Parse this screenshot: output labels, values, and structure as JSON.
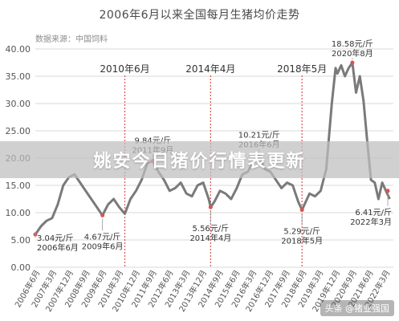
{
  "title": "2006年6月以来全国每月生猪均价走势",
  "source": "数据来源：中国饲料",
  "banner_text": "姚安今日猪价行情表更新",
  "watermark": "头条 @猪业强国",
  "colors": {
    "line": "#7a7a7a",
    "grid": "#d9d9d9",
    "marker_line": "#d9534f",
    "axis_text": "#555555"
  },
  "chart_data": {
    "type": "line",
    "title": "2006年6月以来全国每月生猪均价走势",
    "ylim": [
      0,
      40
    ],
    "y_ticks": [
      "0.00",
      "5.00",
      "10.00",
      "15.00",
      "20.00",
      "25.00",
      "30.00",
      "35.00",
      "40.00"
    ],
    "x_tick_labels": [
      "2006年6月",
      "2007年3月",
      "2007年12月",
      "2008年9月",
      "2009年6月",
      "2010年3月",
      "2010年12月",
      "2011年9月",
      "2012年6月",
      "2013年3月",
      "2013年12月",
      "2014年9月",
      "2015年6月",
      "2016年3月",
      "2016年12月",
      "2017年9月",
      "2018年6月",
      "2019年3月",
      "2019年12月",
      "2020年9月",
      "2021年6月",
      "2022年3月"
    ],
    "series": [
      {
        "values": [
          {
            "x": "2006-06",
            "y": 6.0
          },
          {
            "x": "2006-09",
            "y": 7.5
          },
          {
            "x": "2006-12",
            "y": 8.5
          },
          {
            "x": "2007-03",
            "y": 9.0
          },
          {
            "x": "2007-06",
            "y": 11.5
          },
          {
            "x": "2007-09",
            "y": 15.0
          },
          {
            "x": "2007-12",
            "y": 16.5
          },
          {
            "x": "2008-03",
            "y": 17.0
          },
          {
            "x": "2008-06",
            "y": 15.5
          },
          {
            "x": "2008-09",
            "y": 14.0
          },
          {
            "x": "2008-12",
            "y": 12.5
          },
          {
            "x": "2009-03",
            "y": 11.0
          },
          {
            "x": "2009-06",
            "y": 9.5
          },
          {
            "x": "2009-09",
            "y": 11.5
          },
          {
            "x": "2009-12",
            "y": 12.5
          },
          {
            "x": "2010-03",
            "y": 11.0
          },
          {
            "x": "2010-06",
            "y": 9.8
          },
          {
            "x": "2010-09",
            "y": 12.5
          },
          {
            "x": "2010-12",
            "y": 14.0
          },
          {
            "x": "2011-03",
            "y": 16.0
          },
          {
            "x": "2011-06",
            "y": 19.0
          },
          {
            "x": "2011-09",
            "y": 19.5
          },
          {
            "x": "2011-12",
            "y": 17.5
          },
          {
            "x": "2012-03",
            "y": 16.0
          },
          {
            "x": "2012-06",
            "y": 14.0
          },
          {
            "x": "2012-09",
            "y": 14.5
          },
          {
            "x": "2012-12",
            "y": 15.5
          },
          {
            "x": "2013-03",
            "y": 13.5
          },
          {
            "x": "2013-06",
            "y": 13.0
          },
          {
            "x": "2013-09",
            "y": 15.0
          },
          {
            "x": "2013-12",
            "y": 15.5
          },
          {
            "x": "2014-03",
            "y": 12.5
          },
          {
            "x": "2014-04",
            "y": 11.0
          },
          {
            "x": "2014-06",
            "y": 12.0
          },
          {
            "x": "2014-09",
            "y": 14.0
          },
          {
            "x": "2014-12",
            "y": 13.5
          },
          {
            "x": "2015-03",
            "y": 12.5
          },
          {
            "x": "2015-06",
            "y": 14.5
          },
          {
            "x": "2015-09",
            "y": 17.0
          },
          {
            "x": "2015-12",
            "y": 17.5
          },
          {
            "x": "2016-03",
            "y": 19.5
          },
          {
            "x": "2016-06",
            "y": 20.5
          },
          {
            "x": "2016-09",
            "y": 18.0
          },
          {
            "x": "2016-12",
            "y": 17.5
          },
          {
            "x": "2017-03",
            "y": 16.0
          },
          {
            "x": "2017-06",
            "y": 14.5
          },
          {
            "x": "2017-09",
            "y": 15.5
          },
          {
            "x": "2017-12",
            "y": 15.0
          },
          {
            "x": "2018-03",
            "y": 12.0
          },
          {
            "x": "2018-05",
            "y": 10.5
          },
          {
            "x": "2018-09",
            "y": 13.5
          },
          {
            "x": "2018-12",
            "y": 13.0
          },
          {
            "x": "2019-03",
            "y": 14.0
          },
          {
            "x": "2019-06",
            "y": 18.0
          },
          {
            "x": "2019-09",
            "y": 30.0
          },
          {
            "x": "2019-11",
            "y": 36.5
          },
          {
            "x": "2019-12",
            "y": 35.5
          },
          {
            "x": "2020-02",
            "y": 37.0
          },
          {
            "x": "2020-04",
            "y": 35.0
          },
          {
            "x": "2020-06",
            "y": 36.5
          },
          {
            "x": "2020-08",
            "y": 37.5
          },
          {
            "x": "2020-10",
            "y": 32.0
          },
          {
            "x": "2020-12",
            "y": 35.0
          },
          {
            "x": "2021-02",
            "y": 30.5
          },
          {
            "x": "2021-04",
            "y": 23.0
          },
          {
            "x": "2021-06",
            "y": 16.0
          },
          {
            "x": "2021-08",
            "y": 15.5
          },
          {
            "x": "2021-10",
            "y": 12.5
          },
          {
            "x": "2021-12",
            "y": 15.5
          },
          {
            "x": "2022-02",
            "y": 14.0
          },
          {
            "x": "2022-04",
            "y": 12.5
          }
        ]
      }
    ],
    "event_lines": [
      {
        "x": "2010-06",
        "label": "2010年6月"
      },
      {
        "x": "2014-04",
        "label": "2014年4月"
      },
      {
        "x": "2018-05",
        "label": "2018年5月"
      }
    ],
    "annotations": [
      {
        "x": "2006-06",
        "y": 3.04,
        "price": "3.04元/斤",
        "date": "2006年6月",
        "anchor": "below"
      },
      {
        "x": "2009-06",
        "y": 4.67,
        "price": "4.67元/斤",
        "date": "2009年6月",
        "anchor": "below"
      },
      {
        "x": "2011-09",
        "y": 9.84,
        "price": "9.84元/斤",
        "date": "2011年9月",
        "anchor": "above"
      },
      {
        "x": "2014-04",
        "y": 5.56,
        "price": "5.56元/斤",
        "date": "2014年4月",
        "anchor": "below"
      },
      {
        "x": "2016-06",
        "y": 10.21,
        "price": "10.21元/斤",
        "date": "2016年6月",
        "anchor": "above"
      },
      {
        "x": "2018-05",
        "y": 5.29,
        "price": "5.29元/斤",
        "date": "2018年5月",
        "anchor": "below"
      },
      {
        "x": "2020-08",
        "y": 18.58,
        "price": "18.58元/斤",
        "date": "2020年8月",
        "anchor": "above"
      },
      {
        "x": "2022-03",
        "y": 6.41,
        "price": "6.41元/斤",
        "date": "2022年3月",
        "anchor": "below"
      }
    ],
    "grid": true
  }
}
